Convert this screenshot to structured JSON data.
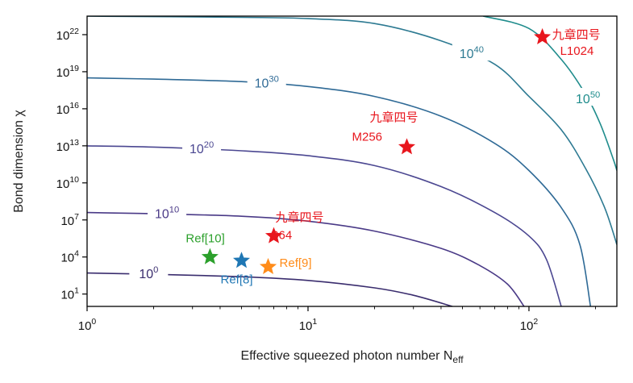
{
  "chart_data": {
    "type": "line",
    "title": "",
    "xlabel": "Effective squeezed photon number N",
    "xlabel_sub": "eff",
    "ylabel": "Bond dimension χ",
    "xscale": "log",
    "yscale": "log",
    "xlim": [
      1,
      250
    ],
    "ylim_log10": [
      0,
      23.5
    ],
    "x_ticks": [
      {
        "base": "10",
        "exp": "0",
        "value": 1
      },
      {
        "base": "10",
        "exp": "1",
        "value": 10
      },
      {
        "base": "10",
        "exp": "2",
        "value": 100
      }
    ],
    "y_ticks": [
      {
        "base": "10",
        "exp": "1",
        "value_log10": 1
      },
      {
        "base": "10",
        "exp": "4",
        "value_log10": 4
      },
      {
        "base": "10",
        "exp": "7",
        "value_log10": 7
      },
      {
        "base": "10",
        "exp": "10",
        "value_log10": 10
      },
      {
        "base": "10",
        "exp": "13",
        "value_log10": 13
      },
      {
        "base": "10",
        "exp": "16",
        "value_log10": 16
      },
      {
        "base": "10",
        "exp": "19",
        "value_log10": 19
      },
      {
        "base": "10",
        "exp": "22",
        "value_log10": 22
      }
    ],
    "contours": [
      {
        "level_log10": 0,
        "label_base": "10",
        "label_exp": "0",
        "color": "#3a2d6e",
        "label_x": 1.9,
        "points": [
          [
            1,
            2.7
          ],
          [
            2,
            2.6
          ],
          [
            5,
            2.4
          ],
          [
            10,
            2.1
          ],
          [
            20,
            1.5
          ],
          [
            30,
            0.9
          ],
          [
            45,
            0
          ]
        ]
      },
      {
        "level_log10": 10,
        "label_base": "10",
        "label_exp": "10",
        "color": "#4a3a87",
        "label_x": 2.3,
        "points": [
          [
            1,
            7.6
          ],
          [
            2,
            7.5
          ],
          [
            5,
            7.3
          ],
          [
            10,
            6.9
          ],
          [
            20,
            6.1
          ],
          [
            40,
            4.7
          ],
          [
            60,
            3.3
          ],
          [
            80,
            1.8
          ],
          [
            95,
            0
          ]
        ]
      },
      {
        "level_log10": 20,
        "label_base": "10",
        "label_exp": "20",
        "color": "#4b4791",
        "label_x": 3.3,
        "points": [
          [
            1,
            13.0
          ],
          [
            2,
            12.9
          ],
          [
            5,
            12.6
          ],
          [
            10,
            12.2
          ],
          [
            20,
            11.4
          ],
          [
            40,
            9.7
          ],
          [
            70,
            7.6
          ],
          [
            100,
            5.7
          ],
          [
            120,
            3.8
          ],
          [
            140,
            0
          ]
        ]
      },
      {
        "level_log10": 30,
        "label_base": "10",
        "label_exp": "30",
        "color": "#2f6a96",
        "label_x": 6.5,
        "points": [
          [
            1,
            18.5
          ],
          [
            2,
            18.4
          ],
          [
            5,
            18.2
          ],
          [
            10,
            17.8
          ],
          [
            20,
            17.0
          ],
          [
            40,
            15.4
          ],
          [
            70,
            13.2
          ],
          [
            100,
            11.0
          ],
          [
            140,
            8.0
          ],
          [
            170,
            5.0
          ],
          [
            190,
            0
          ]
        ]
      },
      {
        "level_log10": 40,
        "label_base": "10",
        "label_exp": "40",
        "color": "#2d7a92",
        "label_x": 55,
        "points": [
          [
            1,
            23.5
          ],
          [
            5,
            23.4
          ],
          [
            10,
            23.3
          ],
          [
            20,
            22.9
          ],
          [
            40,
            21.5
          ],
          [
            70,
            19.6
          ],
          [
            100,
            17.0
          ],
          [
            140,
            14.3
          ],
          [
            180,
            11.2
          ],
          [
            220,
            8.0
          ],
          [
            250,
            5.0
          ]
        ]
      },
      {
        "level_log10": 50,
        "label_base": "10",
        "label_exp": "50",
        "color": "#1f8c8c",
        "label_x": 185,
        "points": [
          [
            62,
            23.5
          ],
          [
            100,
            22.5
          ],
          [
            140,
            20.0
          ],
          [
            180,
            17.2
          ],
          [
            210,
            14.8
          ],
          [
            240,
            12.0
          ],
          [
            250,
            11.0
          ]
        ]
      }
    ],
    "points": [
      {
        "name": "L1024",
        "label_cn": "九章四号",
        "label_en": "L1024",
        "x": 115,
        "y_log10": 21.8,
        "color": "#e8161d"
      },
      {
        "name": "M256",
        "label_cn": "九章四号",
        "label_en": "M256",
        "x": 28,
        "y_log10": 12.9,
        "color": "#e8161d"
      },
      {
        "name": "S64",
        "label_cn": "九章四号",
        "label_en": "S64",
        "x": 7.0,
        "y_log10": 5.7,
        "color": "#e8161d"
      },
      {
        "name": "Ref[10]",
        "label_en": "Ref[10]",
        "x": 3.6,
        "y_log10": 4.0,
        "color": "#2ca02c"
      },
      {
        "name": "Ref[8]",
        "label_en": "Ref[8]",
        "x": 5.0,
        "y_log10": 3.7,
        "color": "#1f77b4"
      },
      {
        "name": "Ref[9]",
        "label_en": "Ref[9]",
        "x": 6.6,
        "y_log10": 3.2,
        "color": "#ff8c1a"
      }
    ]
  }
}
